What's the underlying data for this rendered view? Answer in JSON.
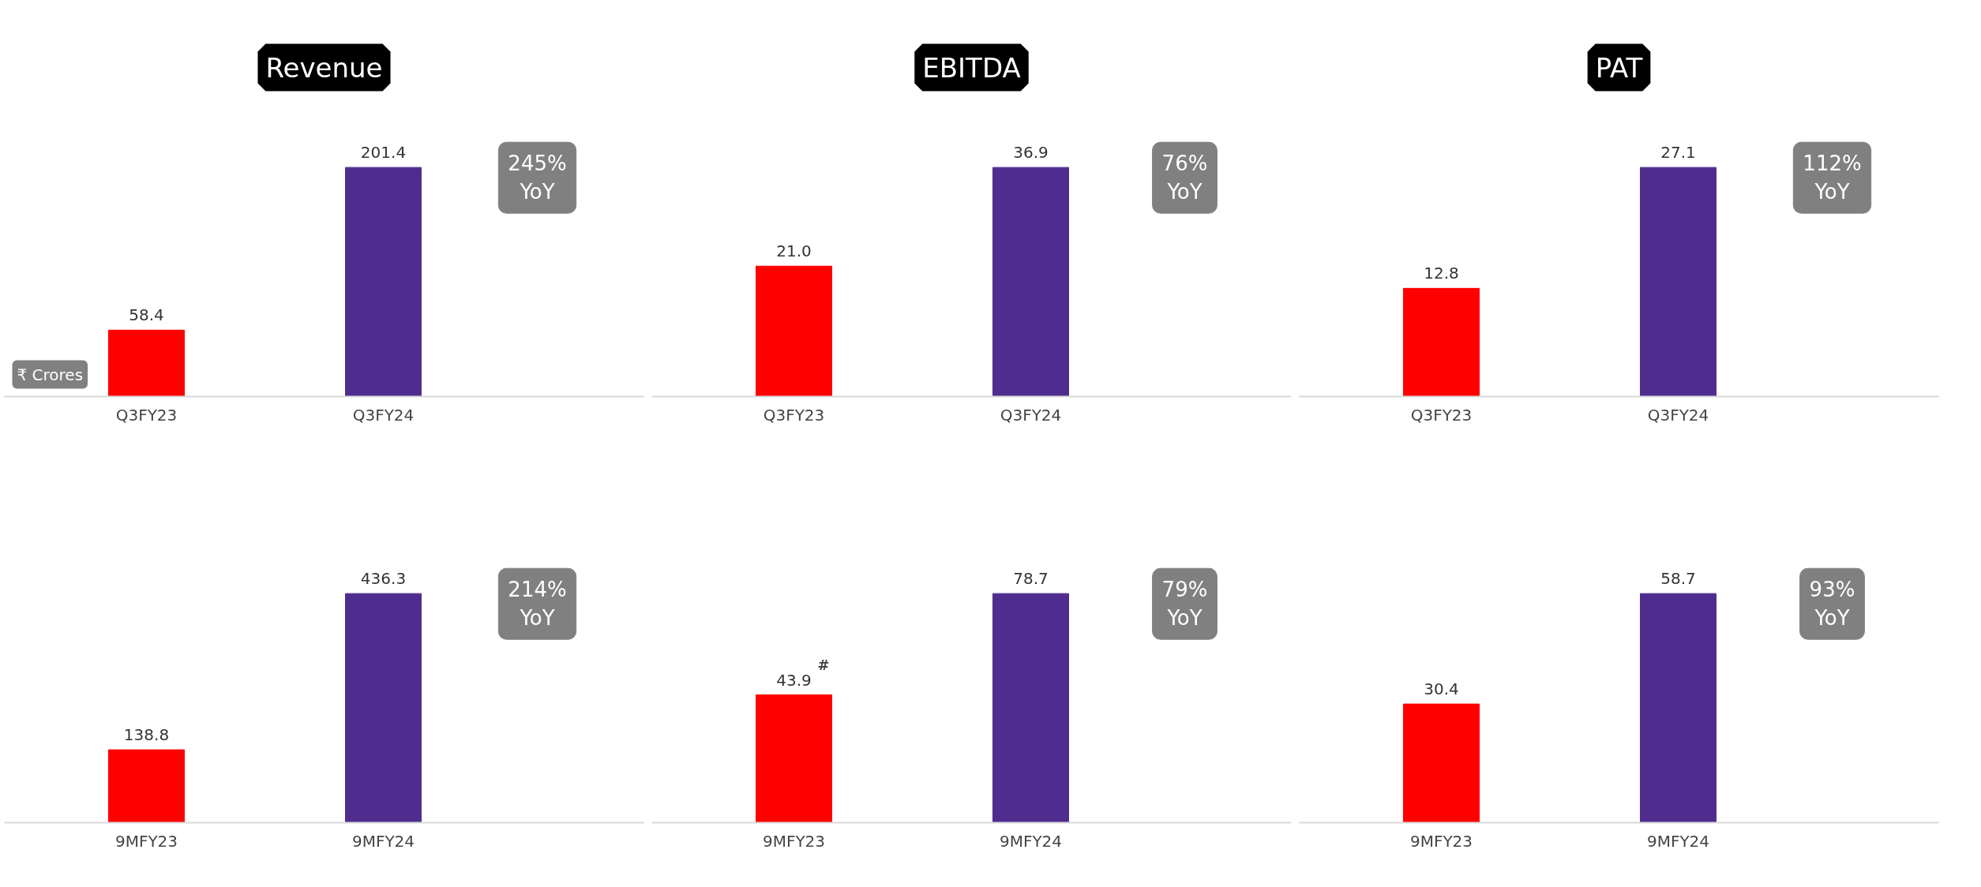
{
  "chart_data": [
    {
      "type": "bar",
      "title": "Revenue",
      "categories": [
        "Q3FY23",
        "Q3FY24"
      ],
      "values": [
        58.4,
        201.4
      ],
      "value_labels": [
        "58.4",
        "201.4"
      ],
      "colors": [
        "#ff0000",
        "#4f2d8f"
      ],
      "tick_labels": "x",
      "annotations": [
        "₹ Crores",
        "245%\nYoY"
      ]
    },
    {
      "type": "bar",
      "title": "EBITDA",
      "categories": [
        "Q3FY23",
        "Q3FY24"
      ],
      "values": [
        21.0,
        36.9
      ],
      "value_labels": [
        "21.0",
        "36.9"
      ],
      "colors": [
        "#ff0000",
        "#4f2d8f"
      ],
      "tick_labels": "x",
      "annotations": [
        "76%\nYoY"
      ]
    },
    {
      "type": "bar",
      "title": "PAT",
      "categories": [
        "Q3FY23",
        "Q3FY24"
      ],
      "values": [
        12.8,
        27.1
      ],
      "value_labels": [
        "12.8",
        "27.1"
      ],
      "colors": [
        "#ff0000",
        "#4f2d8f"
      ],
      "tick_labels": "x",
      "annotations": [
        "112%\nYoY"
      ]
    },
    {
      "type": "bar",
      "categories": [
        "9MFY23",
        "9MFY24"
      ],
      "values": [
        138.8,
        436.3
      ],
      "value_labels": [
        "138.8",
        "436.3"
      ],
      "colors": [
        "#ff0000",
        "#4f2d8f"
      ],
      "tick_labels": "x",
      "annotations": [
        "214%\nYoY"
      ]
    },
    {
      "type": "bar",
      "categories": [
        "9MFY23",
        "9MFY24"
      ],
      "values": [
        43.9,
        78.7
      ],
      "value_labels": [
        "43.9",
        "78.7"
      ],
      "colors": [
        "#ff0000",
        "#4f2d8f"
      ],
      "tick_labels": "x",
      "annotations": [
        "79%\nYoY",
        {
          "text": "#",
          "x": "9MFY23",
          "y": 43.9
        }
      ]
    },
    {
      "type": "bar",
      "categories": [
        "9MFY23",
        "9MFY24"
      ],
      "values": [
        30.4,
        58.7
      ],
      "value_labels": [
        "30.4",
        "58.7"
      ],
      "colors": [
        "#ff0000",
        "#4f2d8f"
      ],
      "tick_labels": "x",
      "annotations": [
        "93%\nYoY"
      ]
    }
  ]
}
